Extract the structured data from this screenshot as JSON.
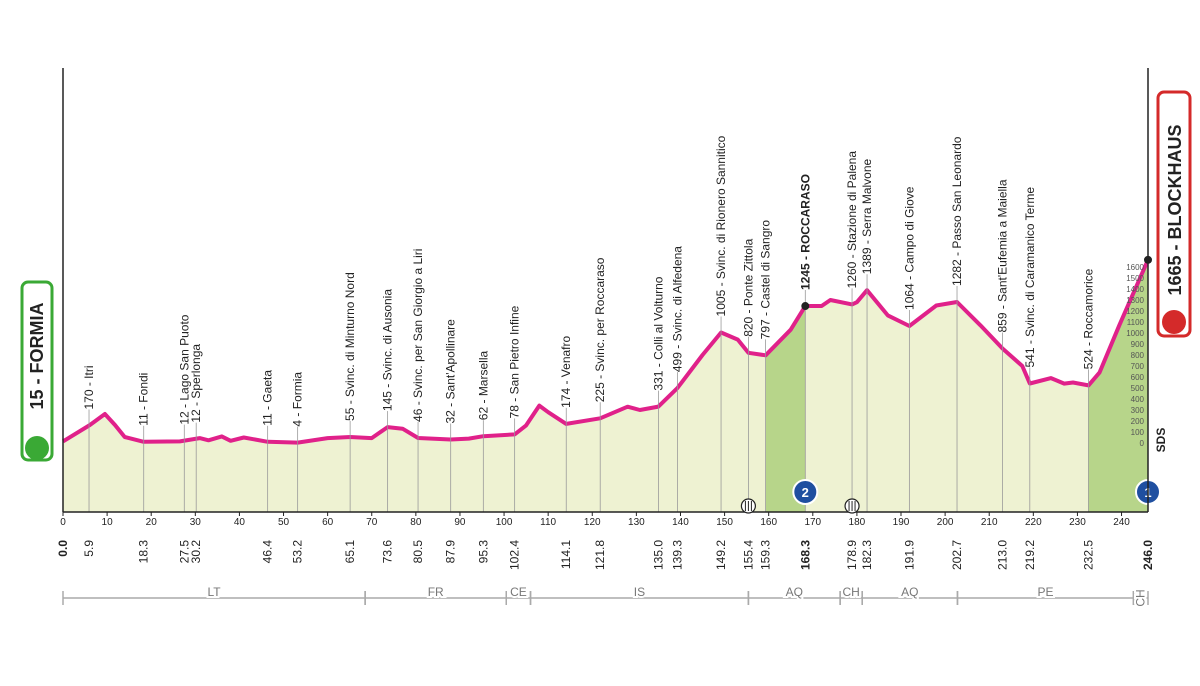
{
  "chart_data": {
    "type": "area",
    "start": {
      "label": "15 - FORMIA",
      "km": {
        "value": 0,
        "label": "0.0"
      }
    },
    "finish": {
      "label": "1665 - BLOCKHAUS",
      "km": {
        "value": 246,
        "label": "246.0"
      }
    },
    "x": [
      0,
      6.1,
      9.5,
      11.8,
      14,
      18.3,
      26.5,
      31,
      33,
      36,
      38,
      41,
      46.4,
      53.2,
      60,
      65.1,
      70,
      73.6,
      77,
      80.5,
      87.9,
      92,
      95.3,
      102.4,
      105,
      108,
      110,
      114.1,
      121.8,
      128,
      130.8,
      135,
      139.3,
      145,
      149.2,
      153,
      155.4,
      159.3,
      165,
      168.3,
      172,
      174,
      178.9,
      180,
      182.3,
      187,
      191.9,
      198,
      202.7,
      208,
      213,
      217.5,
      219.2,
      224,
      227,
      229,
      232.5,
      235,
      239.5,
      246
    ],
    "values": [
      15,
      164,
      264,
      164,
      55,
      11,
      15,
      45,
      25,
      60,
      20,
      50,
      11,
      4,
      45,
      55,
      45,
      145,
      130,
      46,
      32,
      40,
      62,
      78,
      160,
      340,
      280,
      174,
      225,
      330,
      300,
      331,
      499,
      800,
      1005,
      940,
      820,
      797,
      1030,
      1245,
      1245,
      1300,
      1260,
      1280,
      1389,
      1160,
      1064,
      1250,
      1282,
      1070,
      859,
      700,
      541,
      590,
      540,
      550,
      524,
      640,
      1070,
      1665
    ],
    "color": "#e0218a",
    "fill": "#eef2d2",
    "climb_fill": "#b7d58a",
    "xlim": [
      0,
      246
    ],
    "xticks": [
      0,
      10,
      20,
      30,
      40,
      50,
      60,
      70,
      80,
      90,
      100,
      110,
      120,
      130,
      140,
      150,
      160,
      170,
      180,
      190,
      200,
      210,
      220,
      230,
      240
    ],
    "ylim": [
      -627,
      3436
    ],
    "yticks": [
      0,
      100,
      200,
      300,
      400,
      500,
      600,
      700,
      800,
      900,
      1000,
      1100,
      1200,
      1300,
      1400,
      1500,
      1600
    ],
    "waypoints": [
      {
        "label": "170 - Itri",
        "km": 5.9
      },
      {
        "label": "11 - Fondi",
        "km": 18.3
      },
      {
        "label": "12 - Lago San Puoto",
        "km": 27.5
      },
      {
        "label": "12 - Sperlonga",
        "km": 30.2
      },
      {
        "label": "11 - Gaeta",
        "km": 46.4
      },
      {
        "label": "4 - Formia",
        "km": 53.2
      },
      {
        "label": "55 - Svinc. di Minturno Nord",
        "km": 65.1
      },
      {
        "label": "145 - Svinc. di Ausonia",
        "km": 73.6
      },
      {
        "label": "46 - Svinc. per San Giorgio a Liri",
        "km": 80.5
      },
      {
        "label": "32 - Sant'Apollinare",
        "km": 87.9
      },
      {
        "label": "62 - Marsella",
        "km": 95.3
      },
      {
        "label": "78 - San Pietro Infine",
        "km": 102.4
      },
      {
        "label": "174 - Venafro",
        "km": 114.1
      },
      {
        "label": "225 - Svinc. per Roccaraso",
        "km": 121.8
      },
      {
        "label": "331 - Colli al Volturno",
        "km": {
          "value": 135,
          "label": "135.0"
        }
      },
      {
        "label": "499 - Svinc. di Alfedena",
        "km": 139.3
      },
      {
        "label": "1005 - Svinc. di Rionero Sannitico",
        "km": 149.2
      },
      {
        "label": "820 - Ponte Zittola",
        "km": 155.4
      },
      {
        "label": "797 - Castel di Sangro",
        "km": 159.3
      },
      {
        "label": "1245 - ROCCARASO",
        "km": 168.3
      },
      {
        "label": "1260 - Stazione di Palena",
        "km": 178.9
      },
      {
        "label": "1389 - Serra Malvone",
        "km": 182.3
      },
      {
        "label": "1064 - Campo di Giove",
        "km": 191.9
      },
      {
        "label": "1282 - Passo San Leonardo",
        "km": 202.7
      },
      {
        "label": "859 - Sant'Eufemia a Maiella",
        "km": {
          "value": 213,
          "label": "213.0"
        }
      },
      {
        "label": "541 - Svinc. di Caramanico Terme",
        "km": 219.2
      },
      {
        "label": "524 - Roccamorice",
        "km": 232.5
      }
    ],
    "climbs": [
      {
        "category": 2,
        "start": 159.3,
        "end": 168.3
      },
      {
        "category": 1,
        "start": 232.5,
        "end": 246
      }
    ],
    "sprints": [
      155.4,
      178.9
    ],
    "regions": [
      {
        "name": "LT",
        "start": 0,
        "end": 68.5
      },
      {
        "name": "FR",
        "start": 68.5,
        "end": 100.5
      },
      {
        "name": "CE",
        "start": 100.5,
        "end": 106
      },
      {
        "name": "IS",
        "start": 106,
        "end": 155.4
      },
      {
        "name": "AQ",
        "start": 155.4,
        "end": 176.2
      },
      {
        "name": "CH",
        "start": 176.2,
        "end": 181.2
      },
      {
        "name": "AQ",
        "start": 181.2,
        "end": 202.8
      },
      {
        "name": "PE",
        "start": 202.8,
        "end": 242.7
      },
      {
        "name": "CH",
        "start": 242.7,
        "end": 246
      }
    ],
    "mark": "SDS"
  }
}
